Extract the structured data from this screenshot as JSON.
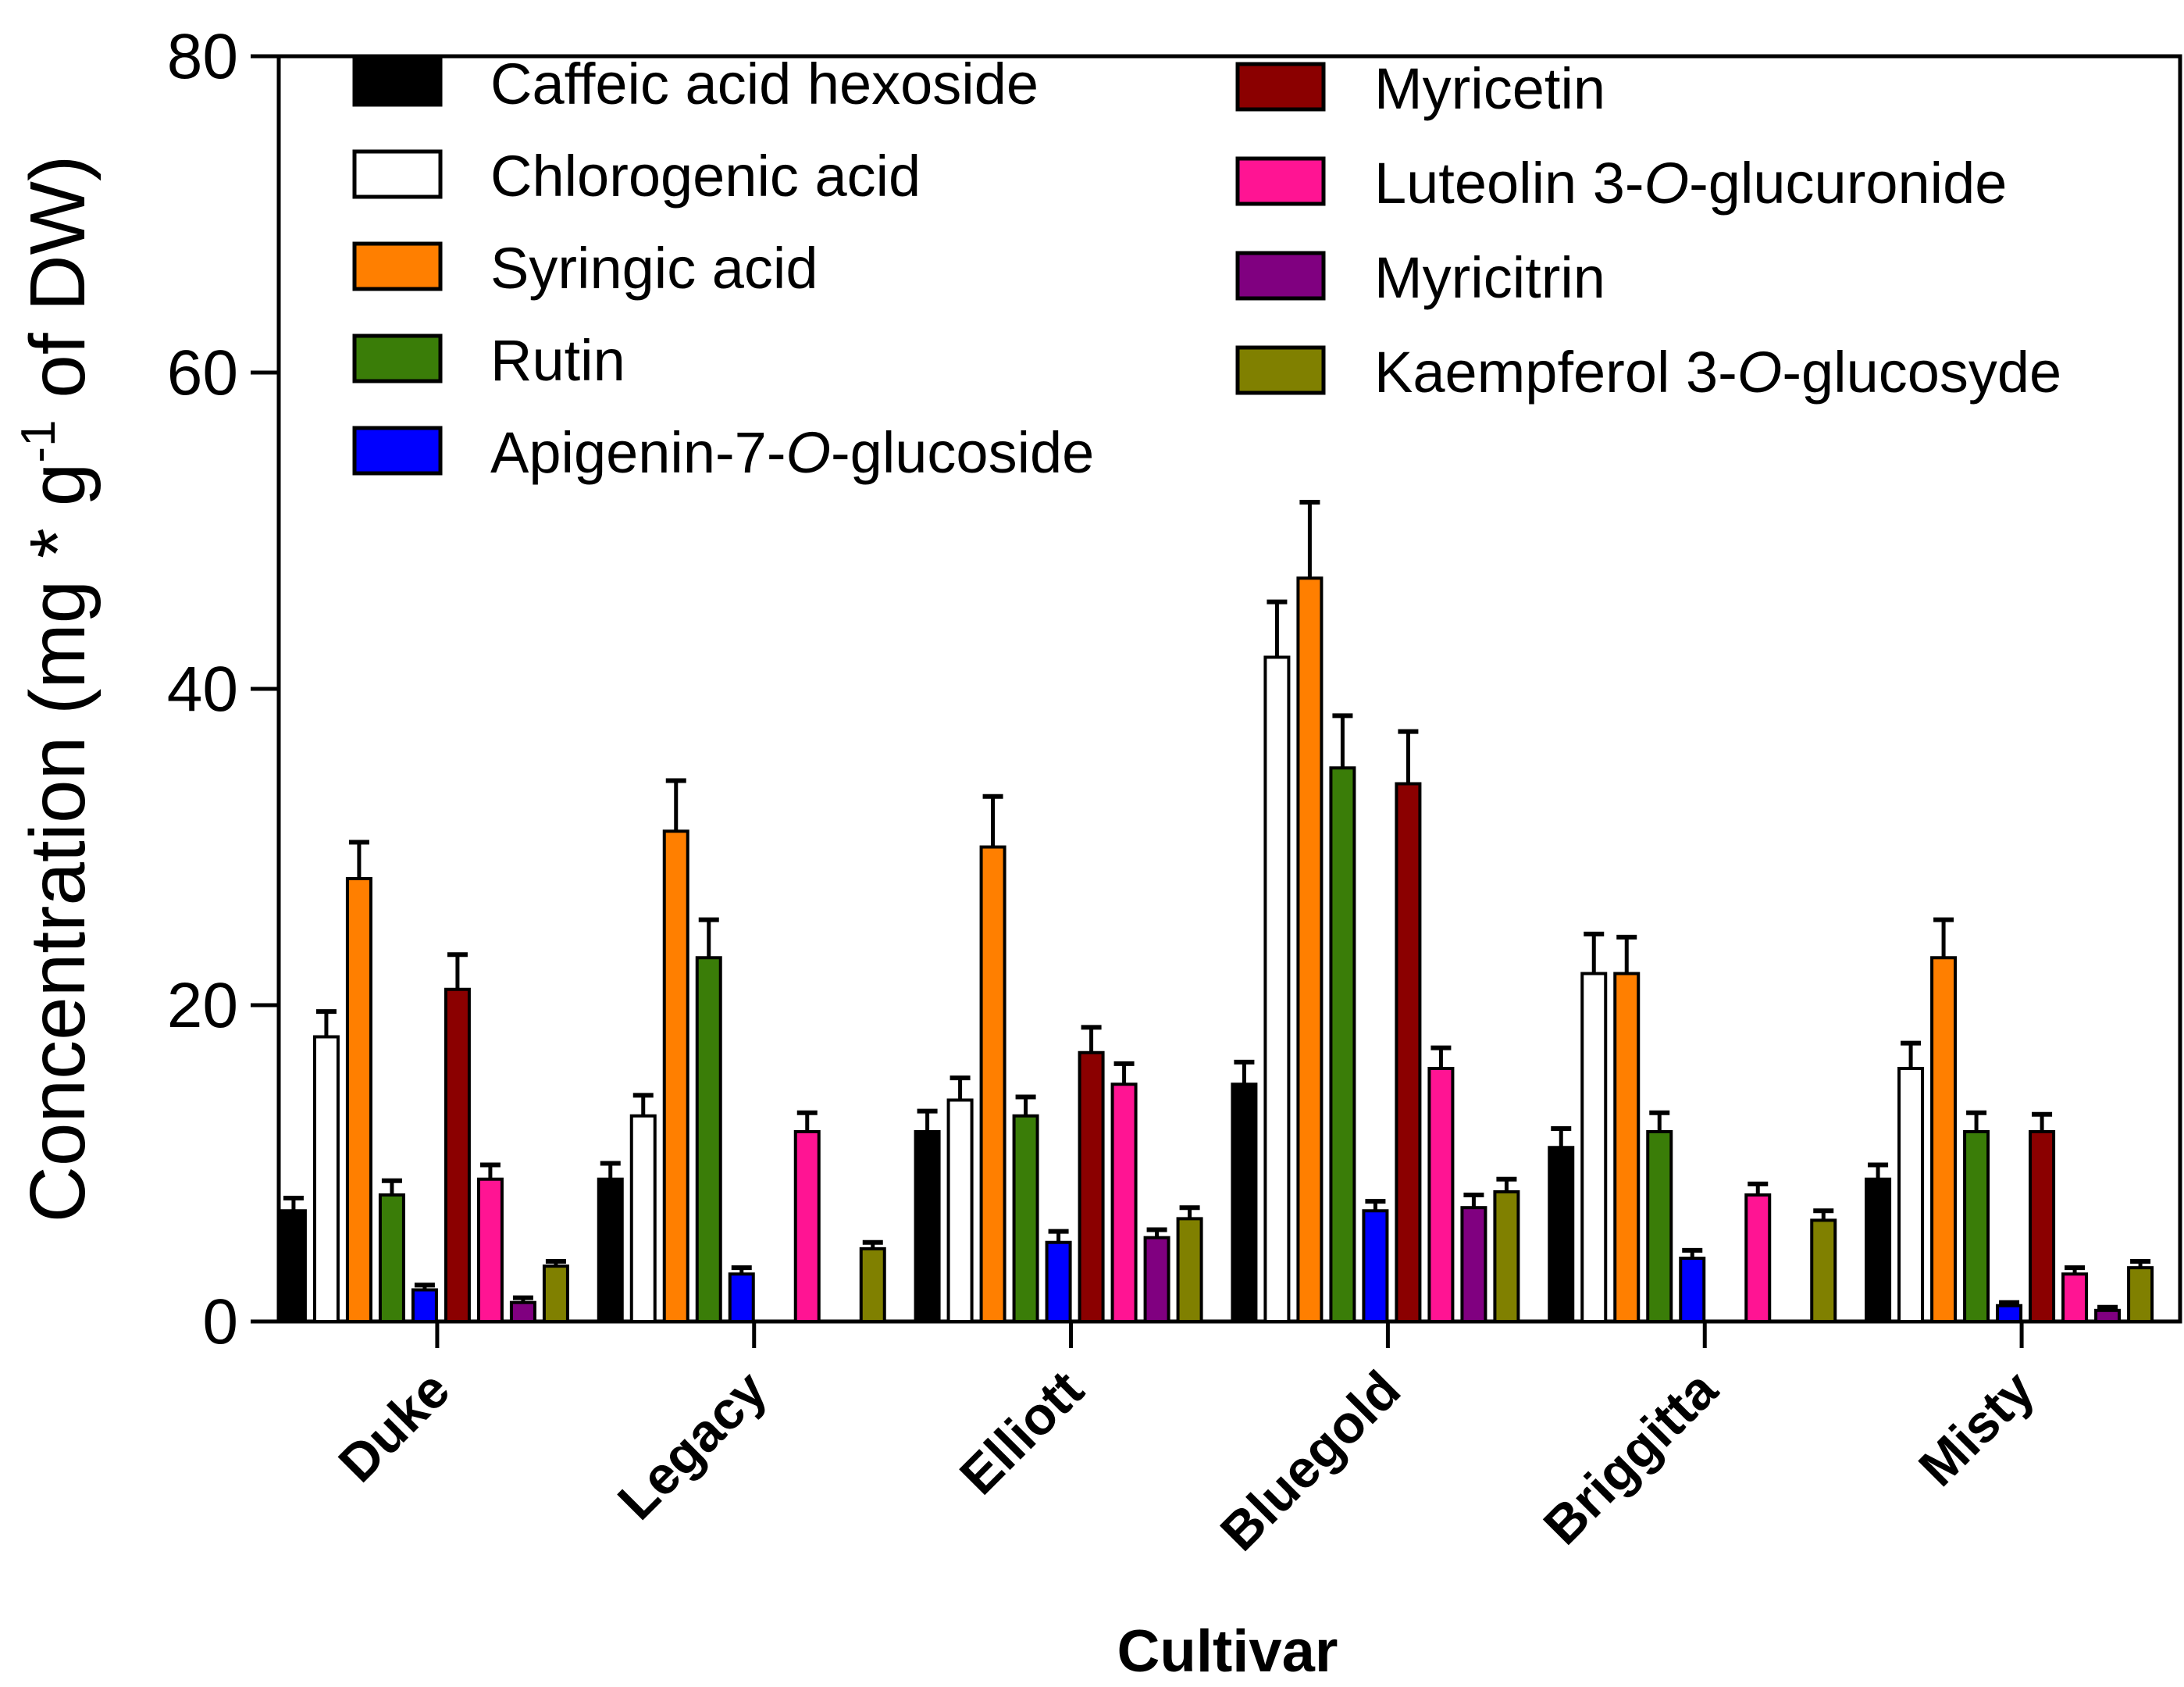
{
  "chart_data": {
    "type": "bar",
    "title": "",
    "xlabel": "Cultivar",
    "ylabel": "Concentration (mg * g-1 of DW)",
    "ylabel_parts": {
      "before": "Concentration (mg * g",
      "superscript": "-1",
      "after": " of DW)"
    },
    "ylim": [
      0,
      80
    ],
    "yticks": [
      0,
      20,
      40,
      60,
      80
    ],
    "ytick_labels": [
      "0",
      "20",
      "40",
      "60",
      "80"
    ],
    "categories": [
      "Duke",
      "Legacy",
      "Elliott",
      "Bluegold",
      "Briggitta",
      "Misty"
    ],
    "legend_position": "top-left, two columns",
    "series": [
      {
        "name": "Caffeic acid hexoside",
        "name_parts": [
          "Caffeic acid hexoside"
        ],
        "color": "#000000",
        "values": [
          7,
          9,
          12,
          15,
          11,
          9
        ],
        "errors": [
          0.8,
          1.0,
          1.3,
          1.4,
          1.2,
          0.9
        ]
      },
      {
        "name": "Chlorogenic acid",
        "name_parts": [
          "Chlorogenic acid"
        ],
        "color": "#ffffff",
        "values": [
          18,
          13,
          14,
          42,
          22,
          16
        ],
        "errors": [
          1.6,
          1.3,
          1.4,
          3.5,
          2.5,
          1.6
        ]
      },
      {
        "name": "Syringic acid",
        "name_parts": [
          "Syringic acid"
        ],
        "color": "#ff7f00",
        "values": [
          28,
          31,
          30,
          47,
          22,
          23
        ],
        "errors": [
          2.3,
          3.2,
          3.2,
          4.8,
          2.3,
          2.4
        ]
      },
      {
        "name": "Rutin",
        "name_parts": [
          "Rutin"
        ],
        "color": "#3a7d08",
        "values": [
          8,
          23,
          13,
          35,
          12,
          12
        ],
        "errors": [
          0.9,
          2.4,
          1.2,
          3.3,
          1.2,
          1.2
        ]
      },
      {
        "name": "Apigenin-7-O-glucoside",
        "name_parts": [
          "Apigenin-7-",
          "O",
          "-glucoside"
        ],
        "color": "#0000ff",
        "values": [
          2,
          3,
          5,
          7,
          4,
          1
        ],
        "errors": [
          0.3,
          0.4,
          0.7,
          0.6,
          0.5,
          0.2
        ]
      },
      {
        "name": "Myricetin",
        "name_parts": [
          "Myricetin"
        ],
        "color": "#8b0000",
        "values": [
          21,
          0,
          17,
          34,
          0,
          12
        ],
        "errors": [
          2.2,
          0,
          1.6,
          3.3,
          0,
          1.1
        ]
      },
      {
        "name": "Luteolin 3-O-glucuronide",
        "name_parts": [
          "Luteolin 3-",
          "O",
          "-glucuronide"
        ],
        "color": "#ff1493",
        "values": [
          9,
          12,
          15,
          16,
          8,
          3
        ],
        "errors": [
          0.9,
          1.2,
          1.3,
          1.3,
          0.7,
          0.4
        ]
      },
      {
        "name": "Myricitrin",
        "name_parts": [
          "Myricitrin"
        ],
        "color": "#800080",
        "values": [
          1.2,
          0,
          5.3,
          7.2,
          0,
          0.7
        ],
        "errors": [
          0.3,
          0,
          0.5,
          0.8,
          0,
          0.2
        ]
      },
      {
        "name": "Kaempferol 3-O-glucosyde",
        "name_parts": [
          "Kaempferol 3-",
          "O",
          "-glucosyde"
        ],
        "color": "#808000",
        "values": [
          3.5,
          4.6,
          6.5,
          8.2,
          6.4,
          3.4
        ],
        "errors": [
          0.3,
          0.4,
          0.7,
          0.8,
          0.6,
          0.4
        ]
      }
    ]
  }
}
